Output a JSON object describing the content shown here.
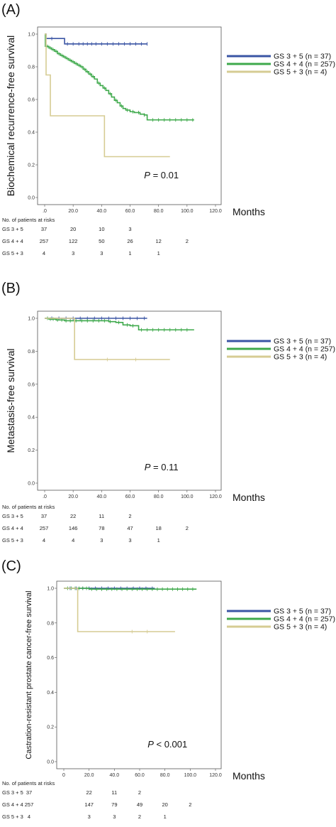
{
  "chart_data": [
    {
      "type": "line",
      "panel_label": "(A)",
      "ylabel": "Biochemical recurrence-free survival",
      "xlabel": "Months",
      "xlim": [
        0,
        120
      ],
      "ylim": [
        0,
        1.0
      ],
      "x_ticks": [
        ".0",
        "20.0",
        "40.0",
        "60.0",
        "80.0",
        "100.0",
        "120.0"
      ],
      "y_ticks": [
        "0.0",
        "0.2",
        "0.4",
        "0.6",
        "0.8",
        "1.0"
      ],
      "p_value": {
        "prefix": "P",
        "rest": " = 0.01"
      },
      "legend_position": "right",
      "series": [
        {
          "name": "GS 3 + 5  (n = 37)",
          "color": "#3a55a4",
          "points": [
            [
              0,
              1.0
            ],
            [
              1,
              0.973
            ],
            [
              12,
              0.973
            ],
            [
              14,
              0.94
            ],
            [
              72,
              0.94
            ]
          ],
          "censors": [
            5,
            16,
            20,
            24,
            27,
            30,
            33,
            36,
            40,
            44,
            48,
            52,
            56,
            60,
            64,
            68,
            72
          ]
        },
        {
          "name": "GS 4 + 4 (n = 257)",
          "color": "#3ea94b",
          "points": [
            [
              0,
              1.0
            ],
            [
              0.5,
              0.925
            ],
            [
              3,
              0.915
            ],
            [
              5,
              0.905
            ],
            [
              7,
              0.895
            ],
            [
              9,
              0.88
            ],
            [
              11,
              0.87
            ],
            [
              13,
              0.86
            ],
            [
              15,
              0.85
            ],
            [
              17,
              0.84
            ],
            [
              19,
              0.83
            ],
            [
              21,
              0.82
            ],
            [
              23,
              0.81
            ],
            [
              25,
              0.8
            ],
            [
              27,
              0.785
            ],
            [
              29,
              0.77
            ],
            [
              31,
              0.755
            ],
            [
              33,
              0.74
            ],
            [
              35,
              0.725
            ],
            [
              37,
              0.7
            ],
            [
              39,
              0.685
            ],
            [
              41,
              0.67
            ],
            [
              43,
              0.655
            ],
            [
              45,
              0.635
            ],
            [
              47,
              0.615
            ],
            [
              49,
              0.595
            ],
            [
              51,
              0.58
            ],
            [
              53,
              0.56
            ],
            [
              55,
              0.545
            ],
            [
              57,
              0.535
            ],
            [
              60,
              0.525
            ],
            [
              63,
              0.52
            ],
            [
              67,
              0.51
            ],
            [
              70,
              0.505
            ],
            [
              72,
              0.475
            ],
            [
              105,
              0.475
            ]
          ],
          "censors": [
            2,
            4,
            6,
            8,
            10,
            12,
            14,
            16,
            18,
            20,
            22,
            24,
            26,
            28,
            30,
            32,
            34,
            38,
            42,
            46,
            50,
            54,
            58,
            62,
            66,
            70,
            76,
            80,
            84,
            88,
            92,
            96,
            100,
            104
          ]
        },
        {
          "name": "GS 5 + 3  (n = 4)",
          "color": "#d6cc93",
          "points": [
            [
              0,
              1.0
            ],
            [
              1,
              0.75
            ],
            [
              4,
              0.5
            ],
            [
              41,
              0.5
            ],
            [
              42,
              0.25
            ],
            [
              88,
              0.25
            ]
          ],
          "censors": []
        }
      ],
      "risk_table": {
        "header": "No. of patients at risks",
        "rows": [
          {
            "label": "GS 3 + 5",
            "values": [
              "37",
              "20",
              "10",
              "3"
            ]
          },
          {
            "label": "GS 4 + 4",
            "values": [
              "257",
              "122",
              "50",
              "26",
              "12",
              "2"
            ]
          },
          {
            "label": "GS 5 + 3",
            "values": [
              "4",
              "3",
              "3",
              "1",
              "1"
            ]
          }
        ]
      }
    },
    {
      "type": "line",
      "panel_label": "(B)",
      "ylabel": "Metastasis-free survival",
      "xlabel": "Months",
      "xlim": [
        0,
        120
      ],
      "ylim": [
        0,
        1.0
      ],
      "x_ticks": [
        ".0",
        "20.0",
        "40.0",
        "60.0",
        "80.0",
        "100.0",
        "120.0"
      ],
      "y_ticks": [
        "0.0",
        "0.2",
        "0.4",
        "0.6",
        "0.8",
        "1.0"
      ],
      "p_value": {
        "prefix": "P",
        "rest": " = 0.11"
      },
      "legend_position": "right",
      "series": [
        {
          "name": "GS 3 + 5  (n = 37)",
          "color": "#3a55a4",
          "points": [
            [
              0,
              1.0
            ],
            [
              72,
              1.0
            ]
          ],
          "censors": [
            5,
            10,
            15,
            20,
            25,
            30,
            35,
            40,
            45,
            50,
            55,
            60,
            65,
            70
          ]
        },
        {
          "name": "GS 4 + 4 (n = 257)",
          "color": "#3ea94b",
          "points": [
            [
              0,
              1.0
            ],
            [
              3,
              0.995
            ],
            [
              8,
              0.99
            ],
            [
              14,
              0.985
            ],
            [
              45,
              0.98
            ],
            [
              50,
              0.975
            ],
            [
              55,
              0.96
            ],
            [
              60,
              0.955
            ],
            [
              66,
              0.93
            ],
            [
              105,
              0.93
            ]
          ],
          "censors": [
            2,
            4,
            6,
            9,
            12,
            15,
            18,
            22,
            26,
            30,
            34,
            38,
            42,
            46,
            52,
            58,
            62,
            68,
            72,
            76,
            80,
            84,
            88,
            92,
            96,
            100
          ]
        },
        {
          "name": "GS 5 + 3  (n = 4)",
          "color": "#d6cc93",
          "points": [
            [
              0,
              1.0
            ],
            [
              20,
              1.0
            ],
            [
              21,
              0.75
            ],
            [
              88,
              0.75
            ]
          ],
          "censors": [
            44,
            64
          ]
        }
      ],
      "risk_table": {
        "header": "No. of patients at risks",
        "rows": [
          {
            "label": "GS 3 + 5",
            "values": [
              "37",
              "22",
              "11",
              "2"
            ]
          },
          {
            "label": "GS 4 + 4",
            "values": [
              "257",
              "146",
              "78",
              "47",
              "18",
              "2"
            ]
          },
          {
            "label": "GS 5 + 3",
            "values": [
              "4",
              "4",
              "3",
              "3",
              "1"
            ]
          }
        ]
      }
    },
    {
      "type": "line",
      "panel_label": "(C)",
      "ylabel": "Castration-resistant prostate cancer-free survival",
      "xlabel": "Months",
      "xlim": [
        0,
        120
      ],
      "ylim": [
        0,
        1.0
      ],
      "x_ticks": [
        "0",
        "20.0",
        "40.0",
        "60.0",
        "80.0",
        "100.0",
        "120.0"
      ],
      "y_ticks": [
        "0.0",
        "0.2",
        "0.4",
        "0.6",
        "0.8",
        "1.0"
      ],
      "p_value": {
        "prefix": "P",
        "rest": " < 0.001"
      },
      "legend_position": "right",
      "series": [
        {
          "name": "GS 3 + 5  (n = 37)",
          "color": "#3a55a4",
          "points": [
            [
              0,
              1.0
            ],
            [
              72,
              1.0
            ]
          ],
          "censors": [
            5,
            10,
            15,
            20,
            25,
            30,
            35,
            40,
            45,
            50,
            55,
            60,
            65,
            70
          ]
        },
        {
          "name": "GS 4 + 4 (n = 257)",
          "color": "#3ea94b",
          "points": [
            [
              0,
              1.0
            ],
            [
              20,
              0.995
            ],
            [
              105,
              0.995
            ]
          ],
          "censors": [
            3,
            6,
            9,
            12,
            15,
            18,
            22,
            26,
            30,
            34,
            38,
            42,
            46,
            50,
            54,
            58,
            62,
            66,
            70,
            74,
            78,
            82,
            86,
            90,
            94,
            98,
            102
          ]
        },
        {
          "name": "GS 5 + 3  (n = 4)",
          "color": "#d6cc93",
          "points": [
            [
              0,
              1.0
            ],
            [
              10,
              1.0
            ],
            [
              11,
              0.75
            ],
            [
              88,
              0.75
            ]
          ],
          "censors": [
            54,
            66
          ]
        }
      ],
      "risk_table": {
        "header": "No. of patients at risks",
        "rows": [
          {
            "label": "GS 3 + 5",
            "values": [
              "37",
              "22",
              "11",
              "2"
            ]
          },
          {
            "label": "GS 4 + 4",
            "values": [
              "257",
              "147",
              "79",
              "49",
              "20",
              "2"
            ]
          },
          {
            "label": "GS 5 + 3",
            "values": [
              "4",
              "3",
              "3",
              "2",
              "1"
            ]
          }
        ]
      }
    }
  ]
}
